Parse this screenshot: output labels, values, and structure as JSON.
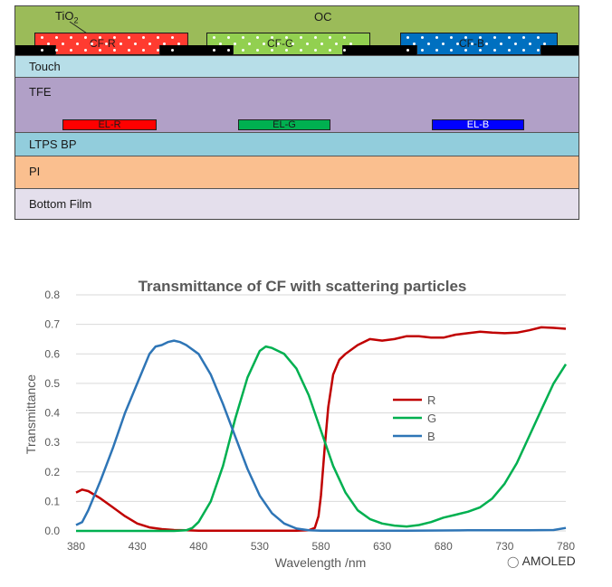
{
  "stack": {
    "oc_label": "OC",
    "tio2_label": "TiO",
    "tio2_sub": "2",
    "cf_r": "CF-R",
    "cf_g": "CF-G",
    "cf_b": "CF-B",
    "touch": "Touch",
    "tfe": "TFE",
    "el_r": "EL-R",
    "el_g": "EL-G",
    "el_b": "EL-B",
    "ltps": "LTPS BP",
    "pi": "PI",
    "bottom": "Bottom Film",
    "colors": {
      "oc": "#9bbb59",
      "touch": "#b7dee8",
      "tfe": "#b1a0c7",
      "ltps": "#92cddc",
      "pi": "#fabf8f",
      "bottom": "#e4dfec",
      "cf_r": "#ff3b30",
      "cf_g": "#92d050",
      "cf_b": "#0070c0",
      "el_r": "#ff0000",
      "el_g": "#00b050",
      "el_b": "#0000ff"
    }
  },
  "chart_data": {
    "type": "line",
    "title": "Transmittance of CF with scattering particles",
    "xlabel": "Wavelength /nm",
    "ylabel": "Transmittance",
    "xlim": [
      380,
      780
    ],
    "ylim": [
      0,
      0.8
    ],
    "xticks": [
      380,
      430,
      480,
      530,
      580,
      630,
      680,
      730,
      780
    ],
    "yticks": [
      0.0,
      0.1,
      0.2,
      0.3,
      0.4,
      0.5,
      0.6,
      0.7,
      0.8
    ],
    "ytick_labels": [
      "0.0",
      "0.1",
      "0.2",
      "0.3",
      "0.4",
      "0.5",
      "0.6",
      "0.7",
      "0.8"
    ],
    "grid": "horizontal",
    "legend": "center-right",
    "series": [
      {
        "name": "R",
        "color": "#c00000",
        "x": [
          380,
          385,
          390,
          400,
          410,
          420,
          430,
          440,
          450,
          460,
          470,
          480,
          500,
          520,
          540,
          560,
          570,
          575,
          578,
          580,
          583,
          586,
          590,
          595,
          600,
          610,
          620,
          630,
          640,
          650,
          660,
          670,
          680,
          690,
          700,
          710,
          720,
          730,
          740,
          750,
          760,
          770,
          780
        ],
        "y": [
          0.13,
          0.14,
          0.135,
          0.11,
          0.08,
          0.05,
          0.025,
          0.012,
          0.006,
          0.003,
          0.002,
          0.001,
          0.001,
          0.001,
          0.001,
          0.001,
          0.002,
          0.01,
          0.05,
          0.12,
          0.28,
          0.42,
          0.53,
          0.58,
          0.6,
          0.63,
          0.65,
          0.645,
          0.65,
          0.66,
          0.66,
          0.655,
          0.655,
          0.665,
          0.67,
          0.675,
          0.672,
          0.67,
          0.672,
          0.68,
          0.69,
          0.688,
          0.685
        ]
      },
      {
        "name": "G",
        "color": "#00b050",
        "x": [
          380,
          400,
          420,
          440,
          460,
          470,
          475,
          480,
          490,
          500,
          510,
          520,
          530,
          535,
          540,
          550,
          560,
          570,
          580,
          590,
          600,
          610,
          620,
          630,
          640,
          650,
          660,
          670,
          680,
          690,
          700,
          710,
          720,
          730,
          740,
          750,
          760,
          770,
          780
        ],
        "y": [
          0.0,
          0.0,
          0.0,
          0.0,
          0.0,
          0.002,
          0.01,
          0.03,
          0.1,
          0.22,
          0.38,
          0.52,
          0.61,
          0.625,
          0.62,
          0.6,
          0.55,
          0.46,
          0.34,
          0.22,
          0.13,
          0.07,
          0.04,
          0.025,
          0.018,
          0.015,
          0.02,
          0.03,
          0.045,
          0.055,
          0.065,
          0.08,
          0.11,
          0.16,
          0.23,
          0.32,
          0.41,
          0.5,
          0.565
        ]
      },
      {
        "name": "B",
        "color": "#2e75b6",
        "x": [
          380,
          385,
          390,
          400,
          410,
          420,
          430,
          440,
          445,
          450,
          455,
          460,
          465,
          470,
          480,
          490,
          500,
          510,
          520,
          530,
          540,
          550,
          560,
          570,
          580,
          600,
          650,
          700,
          750,
          770,
          780
        ],
        "y": [
          0.02,
          0.03,
          0.07,
          0.17,
          0.28,
          0.4,
          0.5,
          0.6,
          0.625,
          0.63,
          0.64,
          0.645,
          0.64,
          0.63,
          0.6,
          0.53,
          0.43,
          0.32,
          0.21,
          0.12,
          0.06,
          0.025,
          0.008,
          0.002,
          0.001,
          0.001,
          0.001,
          0.002,
          0.002,
          0.003,
          0.01
        ]
      }
    ]
  },
  "watermark": "AMOLED"
}
